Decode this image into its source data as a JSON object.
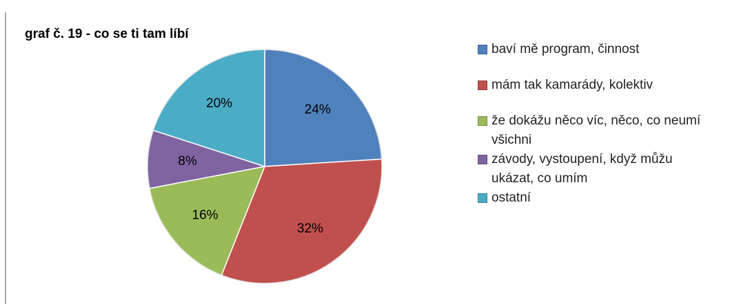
{
  "chart_data": {
    "type": "pie",
    "title": "graf č. 19 - co se ti tam líbí",
    "categories": [
      "baví mě program, činnost",
      "mám tak kamarády, kolektiv",
      "že dokážu něco víc, něco, co neumí všichni",
      "závody, vystoupení, když můžu ukázat, co umím",
      "ostatní"
    ],
    "values": [
      24,
      32,
      16,
      8,
      20
    ],
    "value_labels": [
      "24%",
      "32%",
      "16%",
      "8%",
      "20%"
    ],
    "colors": [
      "#4f81bd",
      "#c0504d",
      "#9bbb59",
      "#8064a2",
      "#4bacc6"
    ],
    "legend": "right"
  }
}
